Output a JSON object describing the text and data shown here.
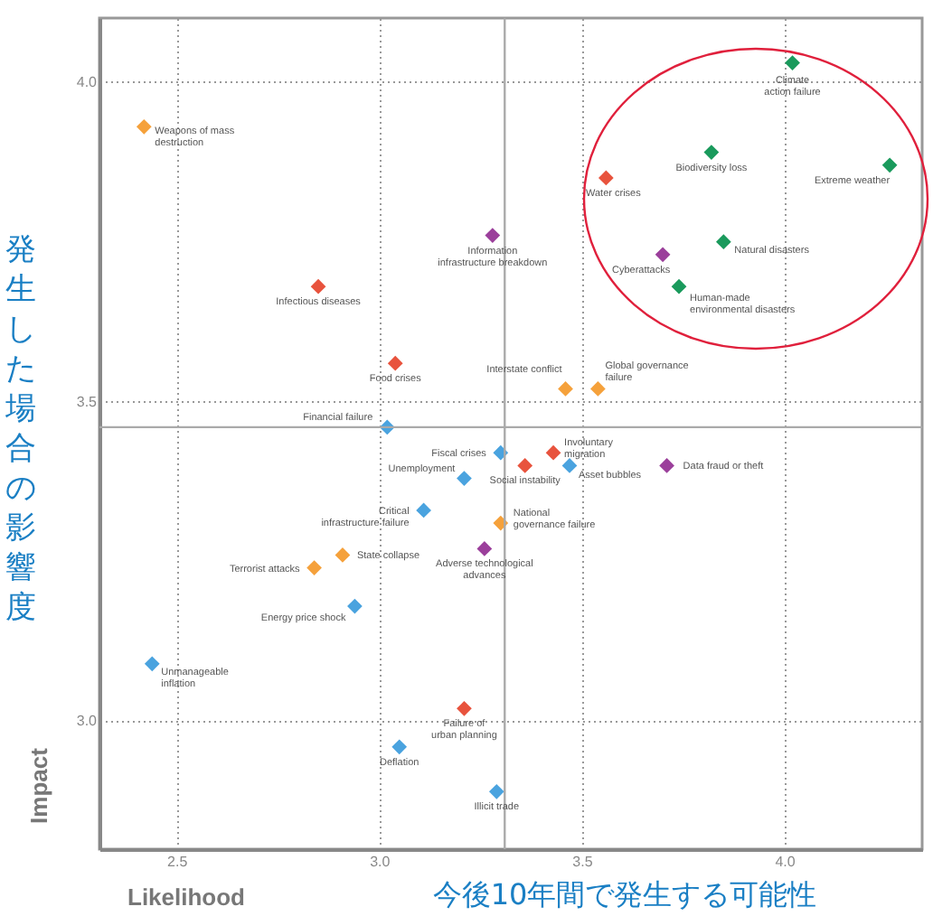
{
  "chart_data": {
    "type": "scatter",
    "xlabel": "今後10年間で発生する可能性",
    "ylabel": "発生した場合の影響度",
    "xlim": [
      2.31,
      4.34
    ],
    "ylim": [
      2.8,
      4.1
    ],
    "xticks": [
      2.5,
      {
        "value": 3,
        "label": "3.0"
      },
      3.5,
      {
        "value": 4,
        "label": "4.0"
      }
    ],
    "yticks": [
      {
        "value": 3,
        "label": "3.0"
      },
      3.5,
      {
        "value": 4,
        "label": "4.0"
      }
    ],
    "grid": true,
    "marker": "diamond",
    "ref_lines": [
      {
        "axis": "x",
        "value": 3.31,
        "color": "#aaaaaa"
      },
      {
        "axis": "y",
        "value": 3.46,
        "color": "#aaaaaa"
      }
    ],
    "series": [
      {
        "color": "#4aa3df",
        "x": [
          3.02,
          3.3,
          3.47,
          3.21,
          3.11,
          2.94,
          2.44,
          3.05,
          3.29
        ],
        "values": [
          3.46,
          3.42,
          3.4,
          3.38,
          3.33,
          3.18,
          3.09,
          2.96,
          2.89
        ]
      },
      {
        "color": "#1a9a5c",
        "x": [
          4.02,
          3.82,
          4.26,
          3.85,
          3.74
        ],
        "values": [
          4.03,
          3.89,
          3.87,
          3.75,
          3.68
        ]
      },
      {
        "color": "#f5a13b",
        "x": [
          2.42,
          3.46,
          3.54,
          3.3,
          2.91,
          2.84
        ],
        "values": [
          3.93,
          3.52,
          3.52,
          3.31,
          3.26,
          3.24
        ]
      },
      {
        "color": "#e8533d",
        "x": [
          2.85,
          3.04,
          3.56,
          3.43,
          3.36,
          3.21
        ],
        "values": [
          3.68,
          3.56,
          3.85,
          3.42,
          3.4,
          3.02
        ]
      },
      {
        "color": "#9b3f9b",
        "x": [
          3.28,
          3.7,
          3.71,
          3.26
        ],
        "values": [
          3.76,
          3.73,
          3.4,
          3.27
        ]
      }
    ],
    "annotations": [
      {
        "text": "Weapons of mass destruction",
        "x": 2.42,
        "y": 3.93
      },
      {
        "text": "Infectious diseases",
        "x": 2.85,
        "y": 3.68
      },
      {
        "text": "Information infrastructure breakdown",
        "x": 3.28,
        "y": 3.76
      },
      {
        "text": "Food crises",
        "x": 3.04,
        "y": 3.56
      },
      {
        "text": "Financial failure",
        "x": 3.02,
        "y": 3.46
      },
      {
        "text": "Climate action failure",
        "x": 4.02,
        "y": 4.03
      },
      {
        "text": "Biodiversity loss",
        "x": 3.82,
        "y": 3.89
      },
      {
        "text": "Extreme weather",
        "x": 4.26,
        "y": 3.87
      },
      {
        "text": "Water crises",
        "x": 3.56,
        "y": 3.85
      },
      {
        "text": "Cyberattacks",
        "x": 3.7,
        "y": 3.73
      },
      {
        "text": "Natural disasters",
        "x": 3.85,
        "y": 3.75
      },
      {
        "text": "Human-made environmental disasters",
        "x": 3.74,
        "y": 3.68
      },
      {
        "text": "Interstate conflict",
        "x": 3.46,
        "y": 3.52
      },
      {
        "text": "Global governance failure",
        "x": 3.54,
        "y": 3.52
      },
      {
        "text": "Fiscal crises",
        "x": 3.3,
        "y": 3.42
      },
      {
        "text": "Involuntary migration",
        "x": 3.43,
        "y": 3.42
      },
      {
        "text": "Social instability",
        "x": 3.36,
        "y": 3.4
      },
      {
        "text": "Asset bubbles",
        "x": 3.47,
        "y": 3.4
      },
      {
        "text": "Data fraud or theft",
        "x": 3.71,
        "y": 3.4
      },
      {
        "text": "Unemployment",
        "x": 3.21,
        "y": 3.38
      },
      {
        "text": "Critical infrastructure failure",
        "x": 3.11,
        "y": 3.33
      },
      {
        "text": "National governance failure",
        "x": 3.3,
        "y": 3.31
      },
      {
        "text": "Adverse technological advances",
        "x": 3.26,
        "y": 3.27
      },
      {
        "text": "State collapse",
        "x": 2.91,
        "y": 3.26
      },
      {
        "text": "Terrorist attacks",
        "x": 2.84,
        "y": 3.24
      },
      {
        "text": "Energy price shock",
        "x": 2.94,
        "y": 3.18
      },
      {
        "text": "Unmanageable inflation",
        "x": 2.44,
        "y": 3.09
      },
      {
        "text": "Failure of urban planning",
        "x": 3.21,
        "y": 3.02
      },
      {
        "text": "Deflation",
        "x": 3.05,
        "y": 2.96
      },
      {
        "text": "Illicit trade",
        "x": 3.29,
        "y": 2.89
      },
      "Impact",
      "Likelihood"
    ]
  }
}
